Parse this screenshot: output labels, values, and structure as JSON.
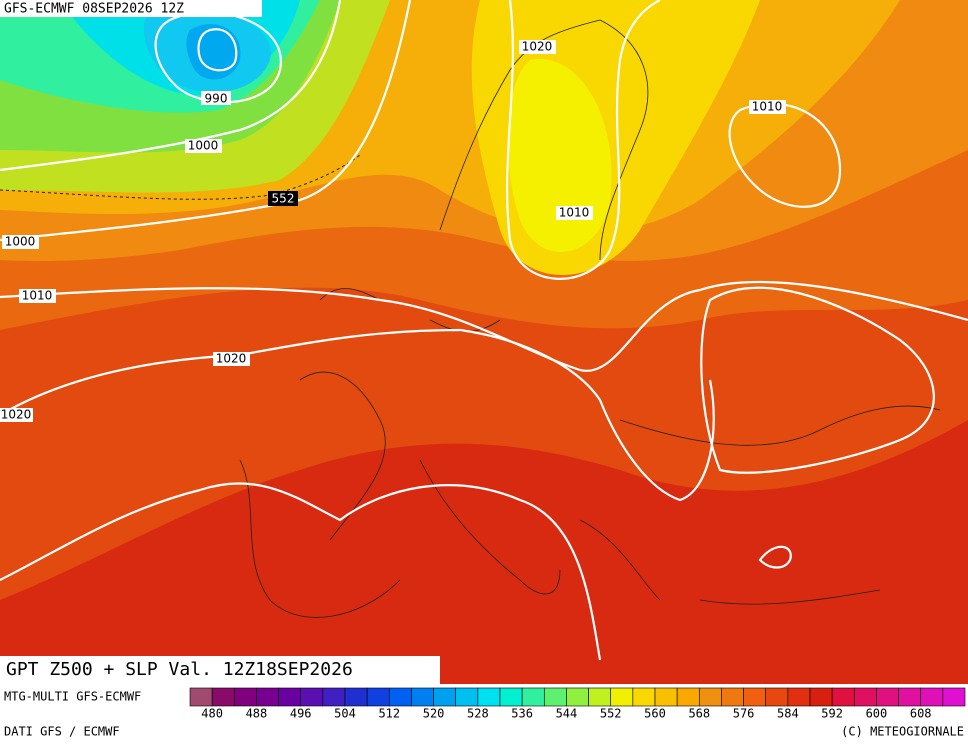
{
  "header": {
    "title": "GFS-ECMWF 08SEP2026 12Z"
  },
  "map": {
    "contour_labels": [
      "990",
      "1000",
      "552",
      "1000",
      "1010",
      "1020",
      "1020",
      "1020",
      "1010",
      "1010"
    ]
  },
  "footer": {
    "caption": "GPT Z500 + SLP Val. 12Z18SEP2026",
    "model": "MTG-MULTI GFS-ECMWF",
    "source": "DATI GFS / ECMWF",
    "copyright": "(C) METEOGIORNALE"
  },
  "colorbar": {
    "ticks": [
      480,
      488,
      496,
      504,
      512,
      520,
      528,
      536,
      544,
      552,
      560,
      568,
      576,
      584,
      592,
      600,
      608
    ],
    "colors": [
      "#a04a70",
      "#8a0a6a",
      "#800080",
      "#780090",
      "#6a00a0",
      "#5a10b0",
      "#4020c0",
      "#2030d0",
      "#1040e0",
      "#0060f0",
      "#0080f0",
      "#00a0f0",
      "#00c0f0",
      "#00e0f0",
      "#00f0d0",
      "#30f0a0",
      "#60f070",
      "#90f040",
      "#c0f020",
      "#f0f000",
      "#f8d800",
      "#f8c000",
      "#f8a800",
      "#f09010",
      "#f07810",
      "#f06010",
      "#e84810",
      "#e03010",
      "#d82010",
      "#e01040",
      "#e01060",
      "#e01080",
      "#e010a0",
      "#e010b8",
      "#e010d0"
    ]
  }
}
